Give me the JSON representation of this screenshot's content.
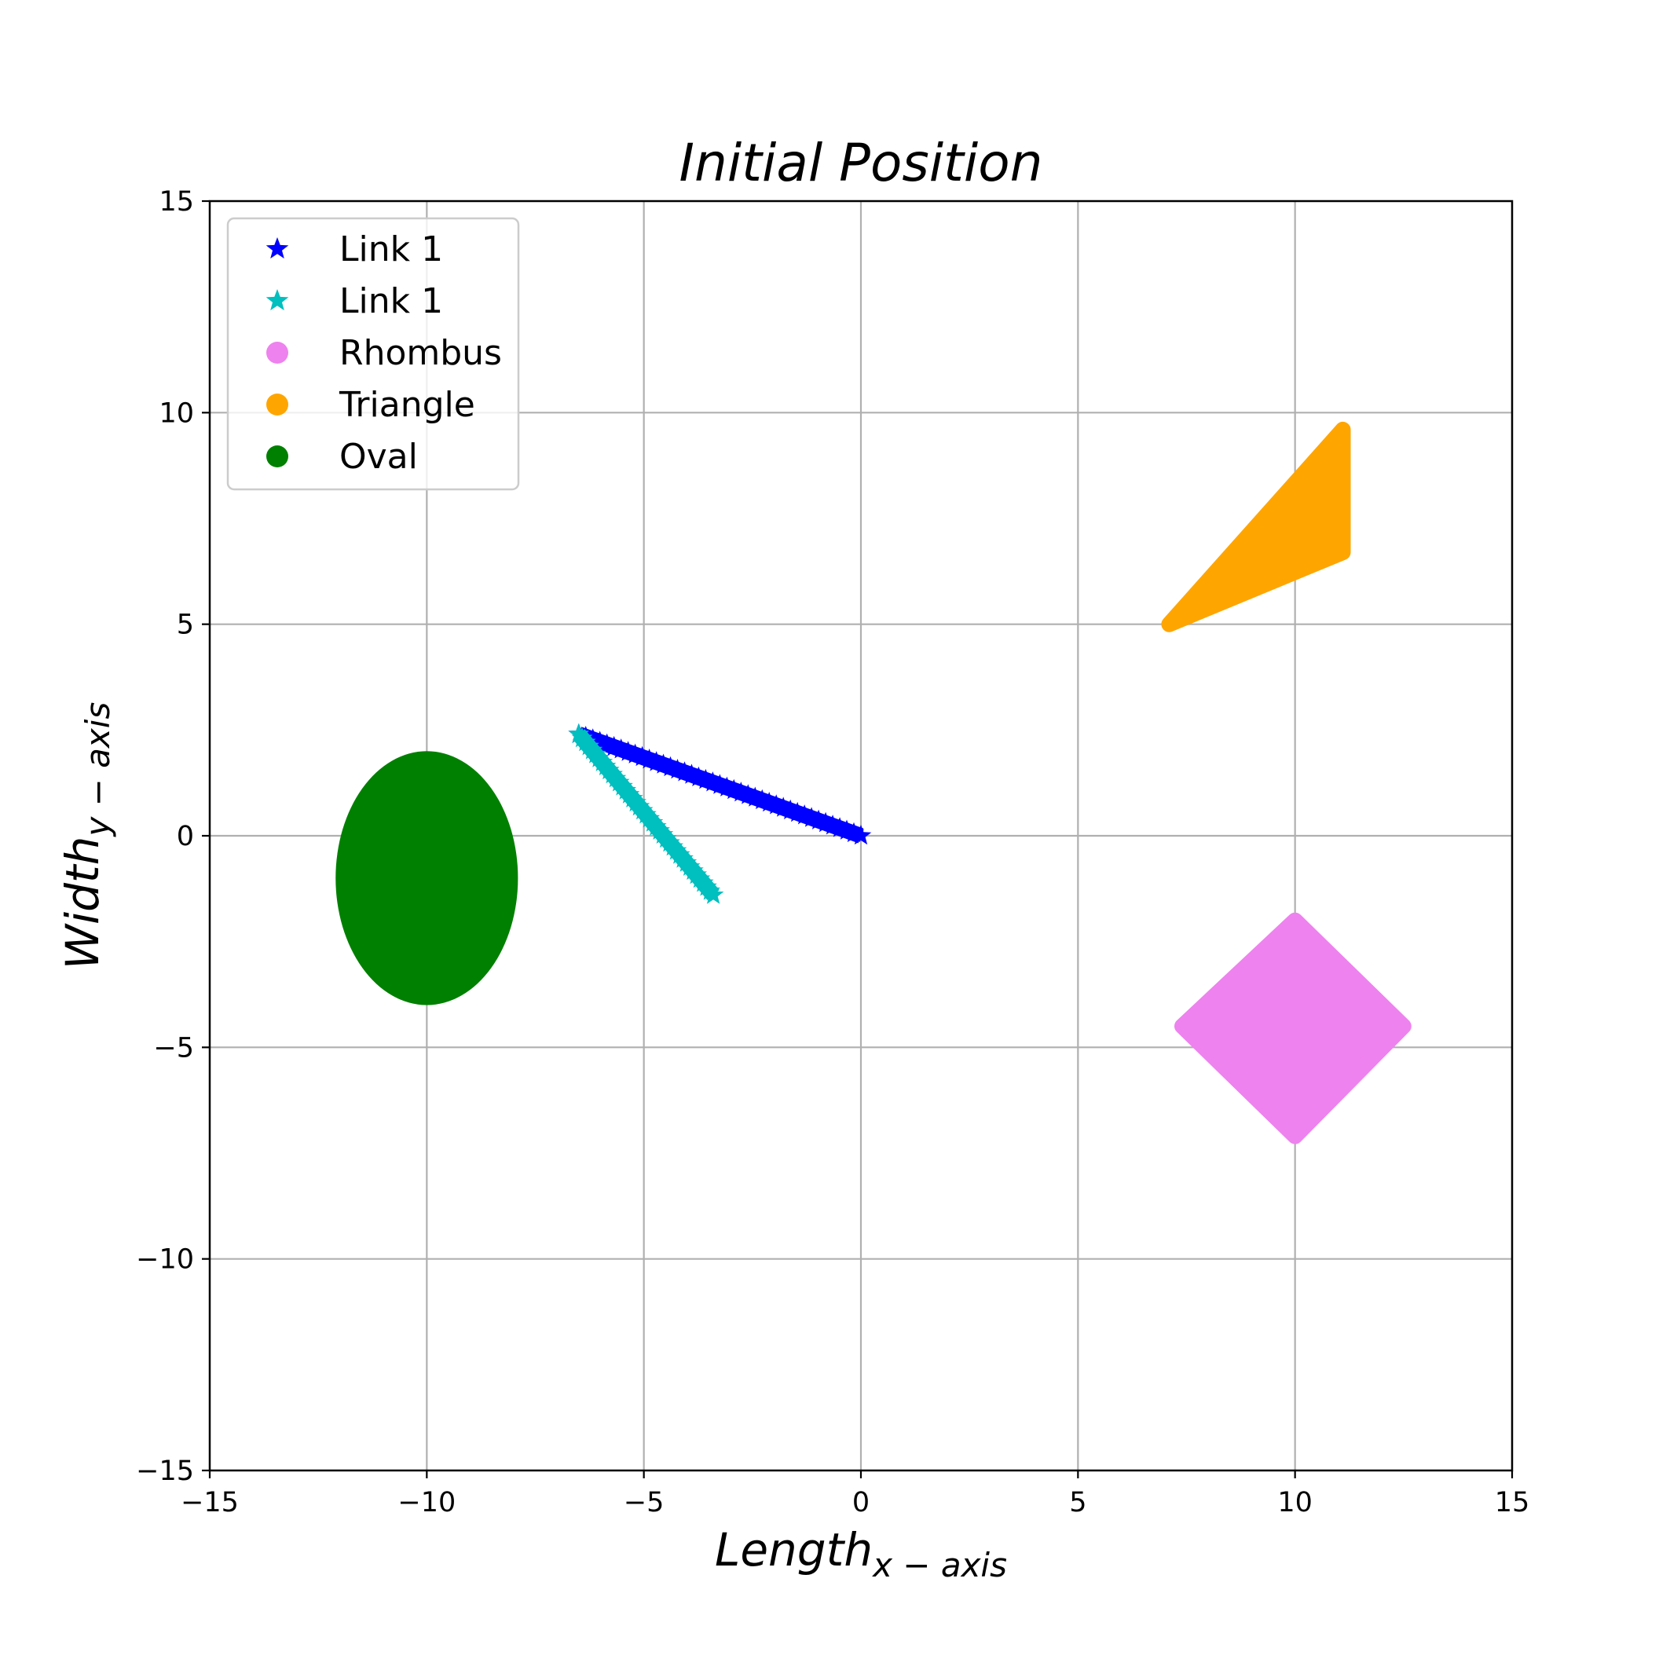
{
  "chart_data": {
    "type": "scatter",
    "title": "Initial Position",
    "xlabel_main": "Length",
    "xlabel_sub": "x − axis",
    "ylabel_main": "Width",
    "ylabel_sub": "y − axis",
    "xlim": [
      -15,
      15
    ],
    "ylim": [
      -15,
      15
    ],
    "xticks": [
      -15,
      -10,
      -5,
      0,
      5,
      10,
      15
    ],
    "yticks": [
      -15,
      -10,
      -5,
      0,
      5,
      10,
      15
    ],
    "xtick_labels": [
      "−15",
      "−10",
      "−5",
      "0",
      "5",
      "10",
      "15"
    ],
    "ytick_labels": [
      "−15",
      "−10",
      "−5",
      "0",
      "5",
      "10",
      "15"
    ],
    "grid": true,
    "legend_position": "top-left",
    "series": [
      {
        "name": "Link 1",
        "marker": "star",
        "color": "#0000ff",
        "kind": "line_points",
        "from": [
          0,
          0
        ],
        "to": [
          -6.5,
          2.4
        ]
      },
      {
        "name": "Link 1",
        "marker": "star",
        "color": "#00bfbf",
        "kind": "line_points",
        "from": [
          -6.5,
          2.4
        ],
        "to": [
          -3.4,
          -1.4
        ]
      },
      {
        "name": "Rhombus",
        "marker": "circle",
        "color": "#ee82ee",
        "kind": "polygon",
        "points": [
          [
            10,
            -2.0
          ],
          [
            12.5,
            -4.5
          ],
          [
            10,
            -7.1
          ],
          [
            7.4,
            -4.5
          ]
        ]
      },
      {
        "name": "Triangle",
        "marker": "circle",
        "color": "#ffa500",
        "kind": "polygon",
        "points": [
          [
            7.1,
            5.0
          ],
          [
            11.1,
            9.6
          ],
          [
            11.1,
            6.7
          ]
        ]
      },
      {
        "name": "Oval",
        "marker": "circle",
        "color": "#008000",
        "kind": "ellipse",
        "center": [
          -10,
          -1
        ],
        "rx": 2.1,
        "ry": 3.0
      }
    ]
  }
}
